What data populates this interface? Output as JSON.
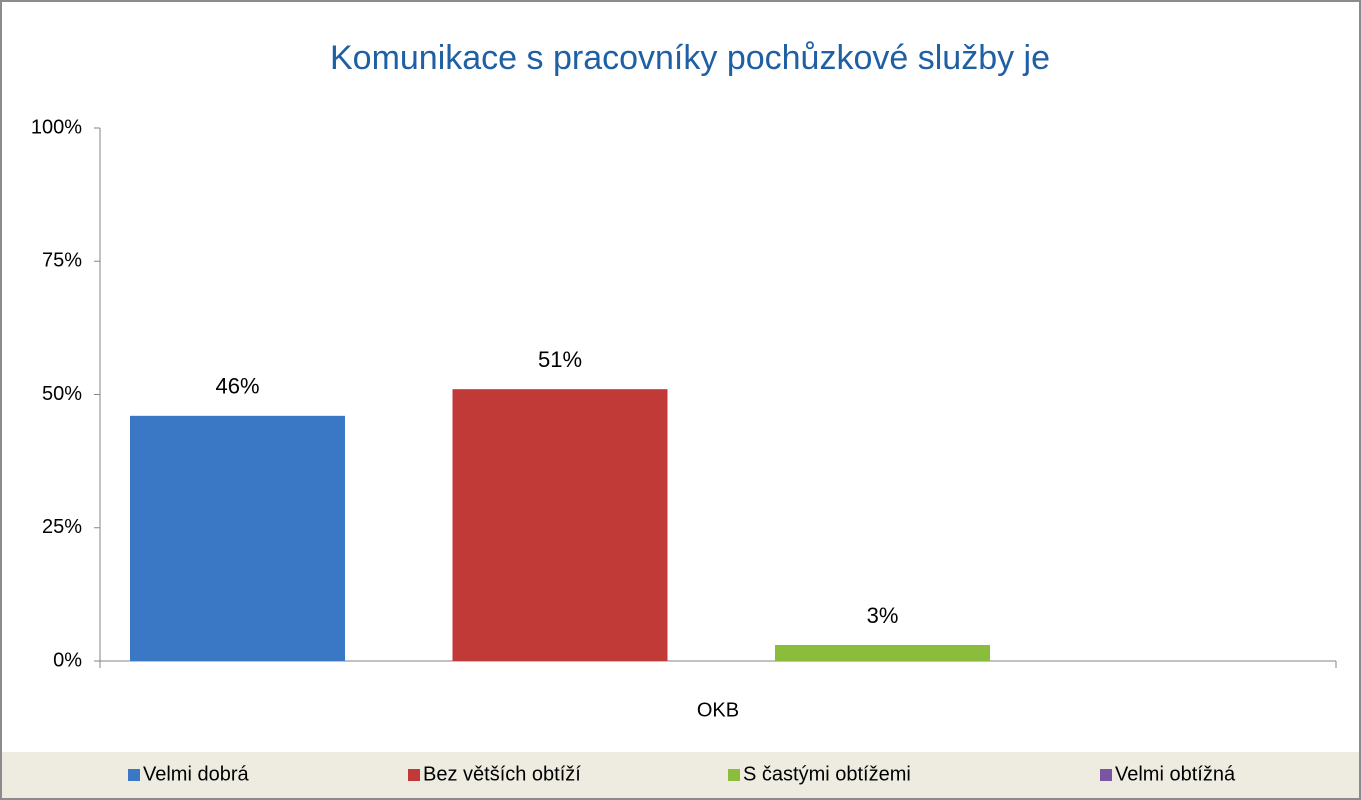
{
  "chart_data": {
    "type": "bar",
    "title": "Komunikace s pracovníky pochůzkové služby je",
    "categories": [
      "OKB"
    ],
    "series": [
      {
        "name": "Velmi dobrá",
        "color": "#3a78c6",
        "values": [
          46
        ],
        "value_labels": [
          "46%"
        ]
      },
      {
        "name": "Bez větších obtíží",
        "color": "#c23a38",
        "values": [
          51
        ],
        "value_labels": [
          "51%"
        ]
      },
      {
        "name": "S častými obtížemi",
        "color": "#8cbc3c",
        "values": [
          3
        ],
        "value_labels": [
          "3%"
        ]
      },
      {
        "name": "Velmi obtížná",
        "color": "#7b55a3",
        "values": [
          null
        ],
        "value_labels": [
          null
        ]
      }
    ],
    "ylim": [
      0,
      100
    ],
    "yticks": [
      {
        "value": 0,
        "label": "0%"
      },
      {
        "value": 25,
        "label": "25%"
      },
      {
        "value": 50,
        "label": "50%"
      },
      {
        "value": 75,
        "label": "75%"
      },
      {
        "value": 100,
        "label": "100%"
      }
    ],
    "grid": false,
    "legend": "bottom"
  }
}
